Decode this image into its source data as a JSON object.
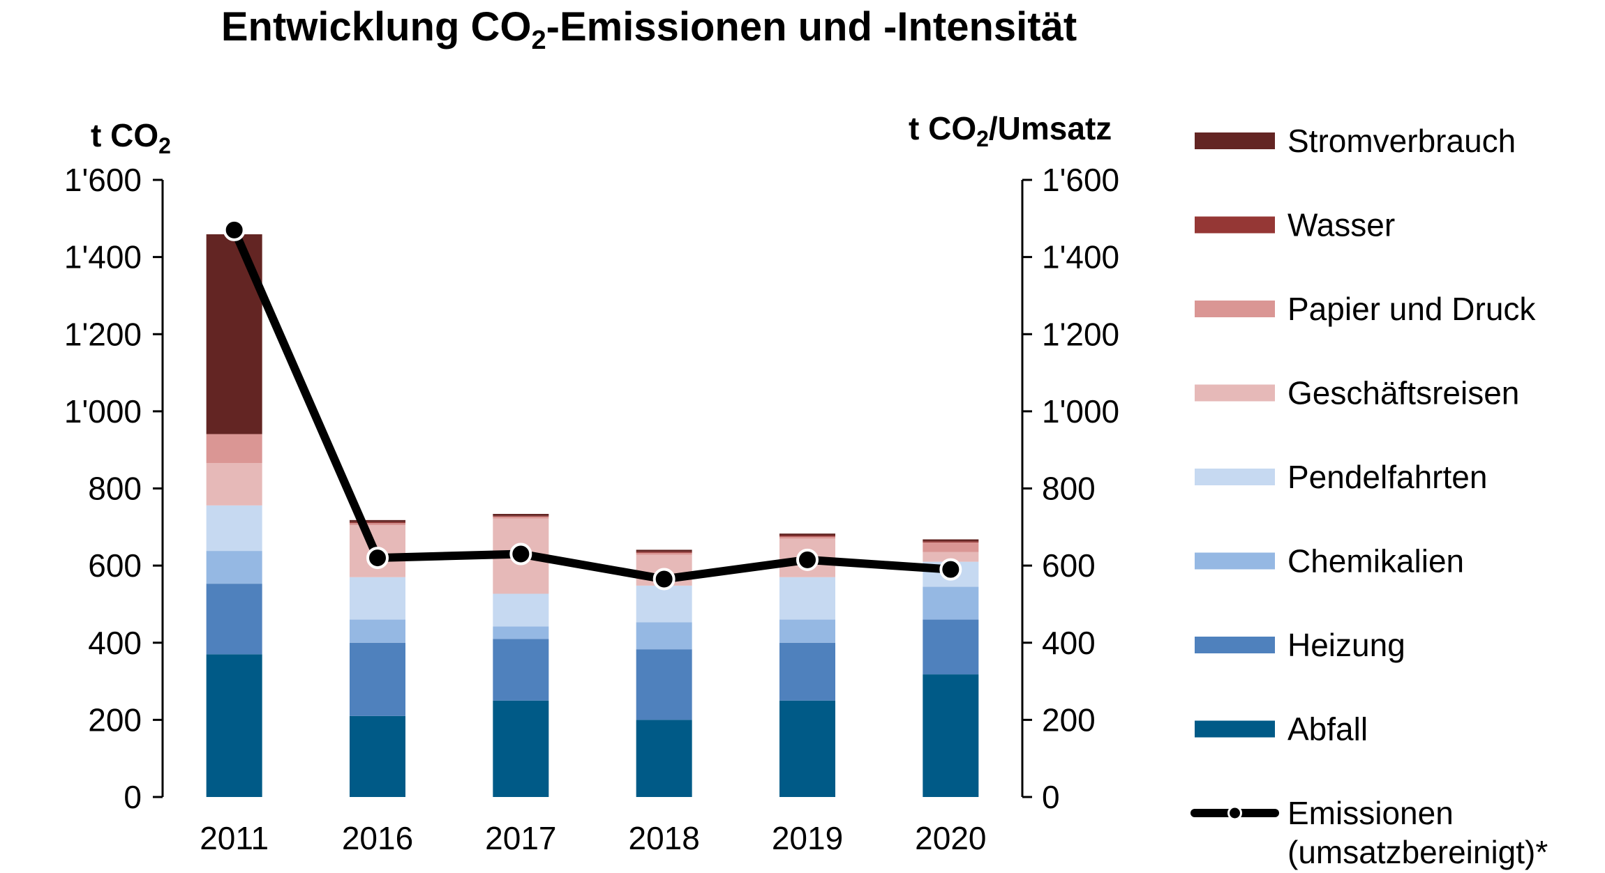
{
  "chart_data": {
    "type": "bar",
    "title": {
      "prefix": "Entwicklung CO",
      "sub": "2",
      "suffix": "-Emissionen  und -Intensität"
    },
    "y_left_label": {
      "prefix": "t CO",
      "sub": "2",
      "suffix": ""
    },
    "y_right_label": {
      "prefix": "t CO",
      "sub": "2",
      "suffix": "/Umsatz"
    },
    "ylim": [
      0,
      1600
    ],
    "yticks": [
      0,
      200,
      400,
      600,
      800,
      1000,
      1200,
      1400,
      1600
    ],
    "ytick_labels": [
      "0",
      "200",
      "400",
      "600",
      "800",
      "1'000",
      "1'200",
      "1'400",
      "1'600"
    ],
    "y2lim": [
      0,
      1600
    ],
    "y2ticks": [
      0,
      200,
      400,
      600,
      800,
      1000,
      1200,
      1400,
      1600
    ],
    "y2tick_labels": [
      "0",
      "200",
      "400",
      "600",
      "800",
      "1'000",
      "1'200",
      "1'400",
      "1'600"
    ],
    "categories": [
      "2011",
      "2016",
      "2017",
      "2018",
      "2019",
      "2020"
    ],
    "stacked": true,
    "series": [
      {
        "name": "Abfall",
        "color": "#005a87",
        "values": [
          370,
          210,
          250,
          200,
          250,
          318
        ]
      },
      {
        "name": "Heizung",
        "color": "#4f81bd",
        "values": [
          183,
          190,
          160,
          183,
          150,
          142
        ]
      },
      {
        "name": "Chemikalien",
        "color": "#95b8e3",
        "values": [
          85,
          60,
          32,
          70,
          60,
          85
        ]
      },
      {
        "name": "Pendelfahrten",
        "color": "#c6d9f1",
        "values": [
          118,
          110,
          85,
          95,
          110,
          65
        ]
      },
      {
        "name": "Geschäftsreisen",
        "color": "#e6b9b8",
        "values": [
          110,
          135,
          195,
          80,
          100,
          25
        ]
      },
      {
        "name": "Papier und Druck",
        "color": "#da9694",
        "values": [
          75,
          5,
          5,
          5,
          5,
          25
        ]
      },
      {
        "name": "Wasser",
        "color": "#953735",
        "values": [
          0,
          3,
          2,
          3,
          3,
          3
        ]
      },
      {
        "name": "Stromverbrauch",
        "color": "#632523",
        "values": [
          518,
          5,
          5,
          5,
          5,
          5
        ]
      }
    ],
    "line": {
      "name_line1": "Emissionen",
      "name_line2": "(umsatzbereinigt)*",
      "color": "#000000",
      "marker_fill": "#ffffff",
      "axis": "right",
      "values": [
        1470,
        620,
        630,
        565,
        615,
        590
      ]
    },
    "legend_position": "right",
    "grid": false
  }
}
